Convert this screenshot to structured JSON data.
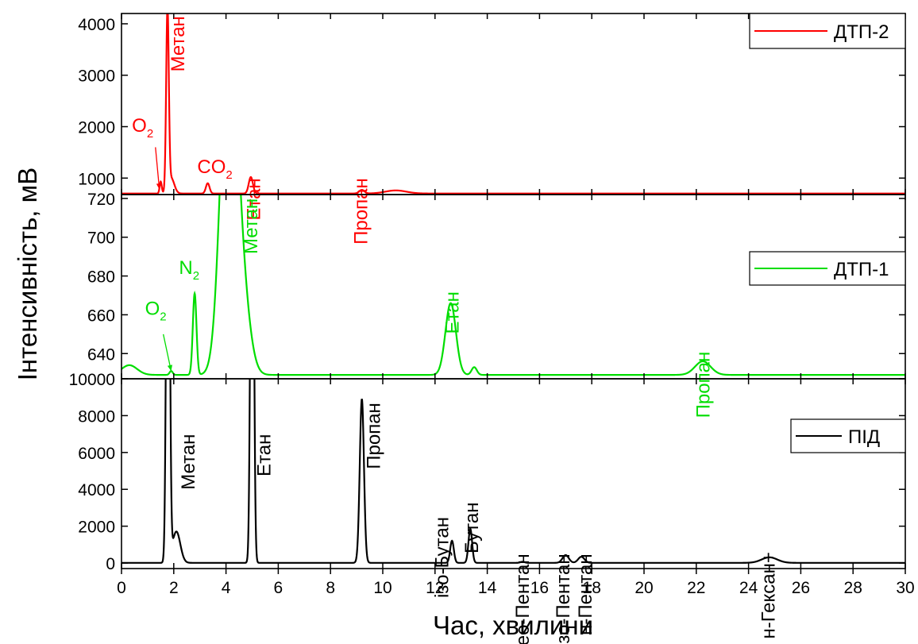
{
  "chart_data": {
    "type": "line",
    "xlabel": "Час, хвилини",
    "ylabel": "Інтенсивність, мВ",
    "xlim": [
      0,
      30
    ],
    "xticks": [
      "0",
      "2",
      "4",
      "6",
      "8",
      "10",
      "12",
      "14",
      "16",
      "18",
      "20",
      "22",
      "24",
      "26",
      "28",
      "30"
    ],
    "grid": false,
    "panels": [
      {
        "id": "top",
        "series_name": "ДТП-2",
        "color": "#ff0000",
        "legend_position": "top-right",
        "ylim": [
          680,
          4200
        ],
        "yticks": [
          "1000",
          "2000",
          "3000",
          "4000"
        ],
        "baseline": 700,
        "peaks": [
          {
            "x": 1.5,
            "h": 230,
            "w": 0.04
          },
          {
            "x": 1.76,
            "h": 3500,
            "w": 0.05
          },
          {
            "x": 1.9,
            "h": 300,
            "w": 0.12
          },
          {
            "x": 3.3,
            "h": 200,
            "w": 0.07
          },
          {
            "x": 4.95,
            "h": 320,
            "w": 0.08
          },
          {
            "x": 9.2,
            "h": 70,
            "w": 0.1
          },
          {
            "x": 10.5,
            "h": 60,
            "w": 0.4
          }
        ],
        "annotations": [
          {
            "text": "O",
            "sub": "2",
            "x": 0.4,
            "y": 1900,
            "rotate": false
          },
          {
            "text": "Метан",
            "x": 2.4,
            "y": 4150,
            "rotate": true
          },
          {
            "text": "CO",
            "sub": "2",
            "x": 2.9,
            "y": 1100,
            "rotate": false
          },
          {
            "text": "Етан",
            "x": 5.3,
            "y": 1000,
            "rotate": true
          },
          {
            "text": "Пропан",
            "x": 9.4,
            "y": 1000,
            "rotate": true
          }
        ]
      },
      {
        "id": "middle",
        "series_name": "ДТП-1",
        "color": "#00dd00",
        "legend_position": "middle-right",
        "ylim": [
          627,
          722
        ],
        "yticks": [
          "640",
          "660",
          "680",
          "700",
          "720"
        ],
        "baseline": 629,
        "peaks": [
          {
            "x": 0.3,
            "h": 5,
            "w": 0.3
          },
          {
            "x": 1.9,
            "h": 2,
            "w": 0.06
          },
          {
            "x": 2.8,
            "h": 42,
            "w": 0.07
          },
          {
            "x": 4.1,
            "h": 180,
            "w": 0.3
          },
          {
            "x": 4.6,
            "h": 40,
            "w": 0.3
          },
          {
            "x": 12.6,
            "h": 37,
            "w": 0.2
          },
          {
            "x": 13.5,
            "h": 4,
            "w": 0.1
          },
          {
            "x": 22.25,
            "h": 7,
            "w": 0.3
          }
        ],
        "annotations": [
          {
            "text": "O",
            "sub": "2",
            "x": 0.9,
            "y": 660,
            "rotate": false
          },
          {
            "text": "N",
            "sub": "2",
            "x": 2.2,
            "y": 681,
            "rotate": false
          },
          {
            "text": "Метан",
            "x": 5.2,
            "y": 720,
            "rotate": true
          },
          {
            "text": "Етан",
            "x": 12.9,
            "y": 672,
            "rotate": true
          },
          {
            "text": "Пропан",
            "x": 22.5,
            "y": 641,
            "rotate": true
          }
        ]
      },
      {
        "id": "bottom",
        "series_name": "ПІД",
        "color": "#000000",
        "legend_position": "bottom-right",
        "ylim": [
          -300,
          10000
        ],
        "yticks": [
          "0",
          "2000",
          "4000",
          "6000",
          "8000",
          "10000"
        ],
        "baseline": 10,
        "peaks": [
          {
            "x": 1.78,
            "h": 30000,
            "w": 0.06
          },
          {
            "x": 2.1,
            "h": 1700,
            "w": 0.15
          },
          {
            "x": 5.0,
            "h": 30000,
            "w": 0.06
          },
          {
            "x": 9.2,
            "h": 8900,
            "w": 0.08
          },
          {
            "x": 12.65,
            "h": 1200,
            "w": 0.07
          },
          {
            "x": 13.35,
            "h": 1850,
            "w": 0.07
          },
          {
            "x": 15.35,
            "h": 60,
            "w": 0.08
          },
          {
            "x": 17.0,
            "h": 420,
            "w": 0.12
          },
          {
            "x": 17.6,
            "h": 330,
            "w": 0.12
          },
          {
            "x": 24.8,
            "h": 300,
            "w": 0.3
          }
        ],
        "annotations": [
          {
            "text": "Метан",
            "x": 2.8,
            "y": 7000,
            "rotate": true
          },
          {
            "text": "Етан",
            "x": 5.7,
            "y": 7000,
            "rotate": true
          },
          {
            "text": "Пропан",
            "x": 9.9,
            "y": 8700,
            "rotate": true
          },
          {
            "text": "ізо-Бутан",
            "x": 12.5,
            "y": 2500,
            "rotate": true
          },
          {
            "text": "Бутан",
            "x": 13.65,
            "y": 3300,
            "rotate": true
          },
          {
            "text": "нео-Пентан",
            "x": 15.6,
            "y": 500,
            "rotate": true
          },
          {
            "text": "ізо-Пентан",
            "x": 17.15,
            "y": 500,
            "rotate": true
          },
          {
            "text": "н-Пентан",
            "x": 18.0,
            "y": 500,
            "rotate": true
          },
          {
            "text": "н-Гексан+",
            "x": 25.0,
            "y": 600,
            "rotate": true
          }
        ]
      }
    ]
  }
}
